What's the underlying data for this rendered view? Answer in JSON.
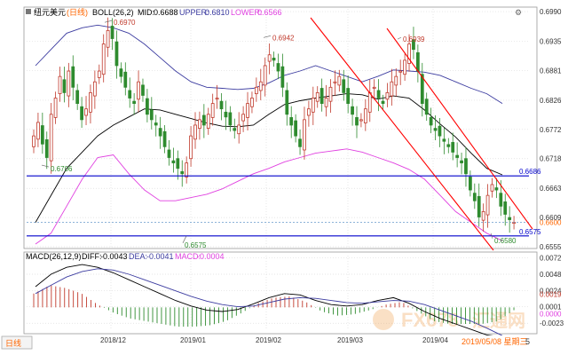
{
  "header": {
    "symbol": "纽元美元",
    "period_tag": "(日线)",
    "indicator": "BOLL(26,2)",
    "mid_label": "MID:",
    "mid_value": "0.6688",
    "upper_label": "UPPER:",
    "upper_value": "0.6810",
    "lower_label": "LOWER:",
    "lower_value": "0.6566"
  },
  "macd_header": {
    "indicator": "MACD(26,12,9)",
    "diff_label": "DIFF:",
    "diff_value": "-0.0043",
    "dea_label": "DEA:",
    "dea_value": "-0.0041",
    "macd_label": "MACD:",
    "macd_value": "-0.0004"
  },
  "footer": {
    "period_button": "日线",
    "date_stamp": "2019/05/08 星期三",
    "last_suffix": "5"
  },
  "watermark": {
    "brand": "FX678",
    "brand_cn": "汇通网"
  },
  "colors": {
    "up": "#c0392b",
    "down": "#2e8b2e",
    "upper_band": "#3c3ca0",
    "mid_band": "#000000",
    "lower_band": "#e040e0",
    "channel": "#ff0000",
    "support": "#0000cc",
    "last_price": "#ff6600",
    "dea": "#3c3ca0"
  },
  "chart_data": [
    {
      "type": "candlestick",
      "title": "纽元美元(日线)",
      "x": [
        "2018/12",
        "2019/01",
        "2019/02",
        "2019/03",
        "2019/04"
      ],
      "ylim": [
        0.6555,
        0.6995
      ],
      "y_ticks": [
        "0.6990",
        "0.6935",
        "0.6881",
        "0.6826",
        "0.6772",
        "0.6718",
        "0.6663",
        "0.6609",
        "0.6555"
      ],
      "annotations": [
        "0.6970",
        "0.6942",
        "0.6939",
        "0.6706",
        "0.6575",
        "0.6580"
      ],
      "right_labels": {
        "resistance": "0.6686",
        "support": "0.6575",
        "last": "0.6600"
      },
      "support_levels": [
        0.6686,
        0.6575
      ],
      "last_price": 0.66,
      "closes": [
        0.676,
        0.6785,
        0.6745,
        0.672,
        0.68,
        0.683,
        0.687,
        0.684,
        0.688,
        0.685,
        0.682,
        0.679,
        0.681,
        0.684,
        0.686,
        0.688,
        0.693,
        0.6955,
        0.694,
        0.689,
        0.687,
        0.685,
        0.683,
        0.682,
        0.686,
        0.6835,
        0.68,
        0.679,
        0.678,
        0.676,
        0.674,
        0.672,
        0.671,
        0.67,
        0.669,
        0.671,
        0.676,
        0.678,
        0.679,
        0.678,
        0.68,
        0.682,
        0.683,
        0.681,
        0.6795,
        0.678,
        0.677,
        0.678,
        0.68,
        0.682,
        0.683,
        0.685,
        0.686,
        0.689,
        0.691,
        0.69,
        0.688,
        0.685,
        0.68,
        0.678,
        0.676,
        0.674,
        0.679,
        0.681,
        0.683,
        0.684,
        0.682,
        0.683,
        0.685,
        0.686,
        0.687,
        0.684,
        0.682,
        0.68,
        0.678,
        0.679,
        0.681,
        0.684,
        0.685,
        0.683,
        0.682,
        0.684,
        0.686,
        0.687,
        0.688,
        0.69,
        0.693,
        0.692,
        0.688,
        0.682,
        0.68,
        0.678,
        0.677,
        0.676,
        0.675,
        0.674,
        0.673,
        0.672,
        0.671,
        0.669,
        0.666,
        0.664,
        0.661,
        0.662,
        0.665,
        0.667,
        0.666,
        0.663,
        0.6615,
        0.6605,
        0.66
      ],
      "upper_band": [
        0.689,
        0.692,
        0.695,
        0.696,
        0.6965,
        0.696,
        0.695,
        0.693,
        0.6905,
        0.688,
        0.686,
        0.685,
        0.6848,
        0.6846,
        0.6848,
        0.6858,
        0.6872,
        0.688,
        0.689,
        0.688,
        0.687,
        0.686,
        0.687,
        0.6882,
        0.688,
        0.6878,
        0.6872,
        0.686,
        0.6848,
        0.6838,
        0.682
      ],
      "mid_band": [
        0.66,
        0.665,
        0.67,
        0.673,
        0.676,
        0.678,
        0.6795,
        0.681,
        0.6808,
        0.68,
        0.6792,
        0.6784,
        0.6778,
        0.6777,
        0.678,
        0.68,
        0.6818,
        0.6825,
        0.683,
        0.6834,
        0.6838,
        0.6836,
        0.6828,
        0.6834,
        0.683,
        0.6808,
        0.6782,
        0.6758,
        0.6728,
        0.67,
        0.6688
      ],
      "lower_band": [
        0.656,
        0.658,
        0.663,
        0.668,
        0.672,
        0.6725,
        0.669,
        0.666,
        0.664,
        0.664,
        0.6646,
        0.6652,
        0.6662,
        0.6676,
        0.669,
        0.67,
        0.6712,
        0.672,
        0.6728,
        0.6732,
        0.6736,
        0.673,
        0.672,
        0.671,
        0.6698,
        0.668,
        0.665,
        0.662,
        0.66,
        0.658,
        0.6566
      ]
    },
    {
      "type": "bar",
      "title": "MACD(26,12,9)",
      "ylim": [
        -0.0033,
        0.0075
      ],
      "y_ticks": [
        "0.0072",
        "0.0048",
        "0.0024",
        "0.0001",
        "-0.0023"
      ],
      "right_labels": {
        "diff": "0.0019",
        "dea": "0.0000"
      },
      "series": [
        {
          "name": "DIFF",
          "values": [
            0.003,
            0.0048,
            0.0058,
            0.0062,
            0.0058,
            0.005,
            0.004,
            0.003,
            0.002,
            0.001,
            0.0002,
            -0.0004,
            -0.0006,
            -0.0003,
            0.0005,
            0.0014,
            0.002,
            0.0018,
            0.001,
            0.0004,
            0.0002,
            0.0004,
            0.001,
            0.0014,
            0.0006,
            -0.0006,
            -0.0016,
            -0.0024,
            -0.0032,
            -0.004,
            -0.0043
          ]
        },
        {
          "name": "DEA",
          "values": [
            0.002,
            0.0032,
            0.0044,
            0.0052,
            0.0056,
            0.0054,
            0.0048,
            0.004,
            0.0032,
            0.0024,
            0.0016,
            0.0009,
            0.0004,
            0.0001,
            0.0002,
            0.0007,
            0.0012,
            0.0014,
            0.0013,
            0.001,
            0.0007,
            0.0006,
            0.0008,
            0.001,
            0.0009,
            0.0004,
            -0.0004,
            -0.0012,
            -0.002,
            -0.003,
            -0.0041
          ]
        }
      ]
    }
  ]
}
